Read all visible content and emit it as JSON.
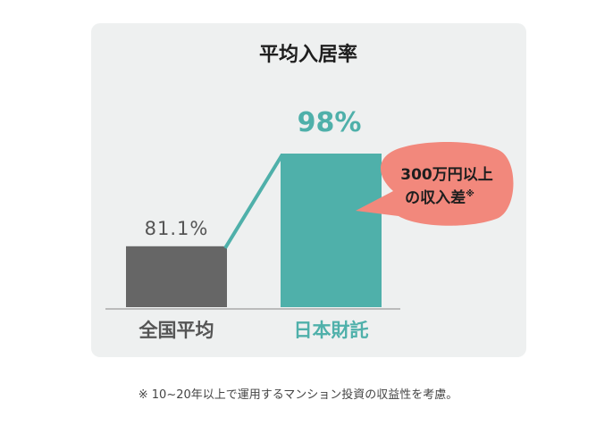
{
  "chart_data": {
    "type": "bar",
    "title": "平均入居率",
    "categories": [
      "全国平均",
      "日本財託"
    ],
    "values": [
      81.1,
      98
    ],
    "value_labels": [
      "81.1%",
      "98%"
    ],
    "ylim": [
      70,
      100
    ],
    "grid": false,
    "legend": "none",
    "colors": [
      "#666666",
      "#4fb0aa"
    ],
    "label_colors": [
      "#555555",
      "#4fb0aa"
    ]
  },
  "callout": {
    "line1": "300万円以上",
    "line2": "の収入差",
    "mark": "※",
    "color": "#f2887c"
  },
  "footnote": "※ 10~20年以上で運用するマンション投資の収益性を考慮。",
  "colors": {
    "card_bg": "#eef0f0",
    "baseline": "#bbbbbb",
    "connector": "#4fb0aa"
  }
}
